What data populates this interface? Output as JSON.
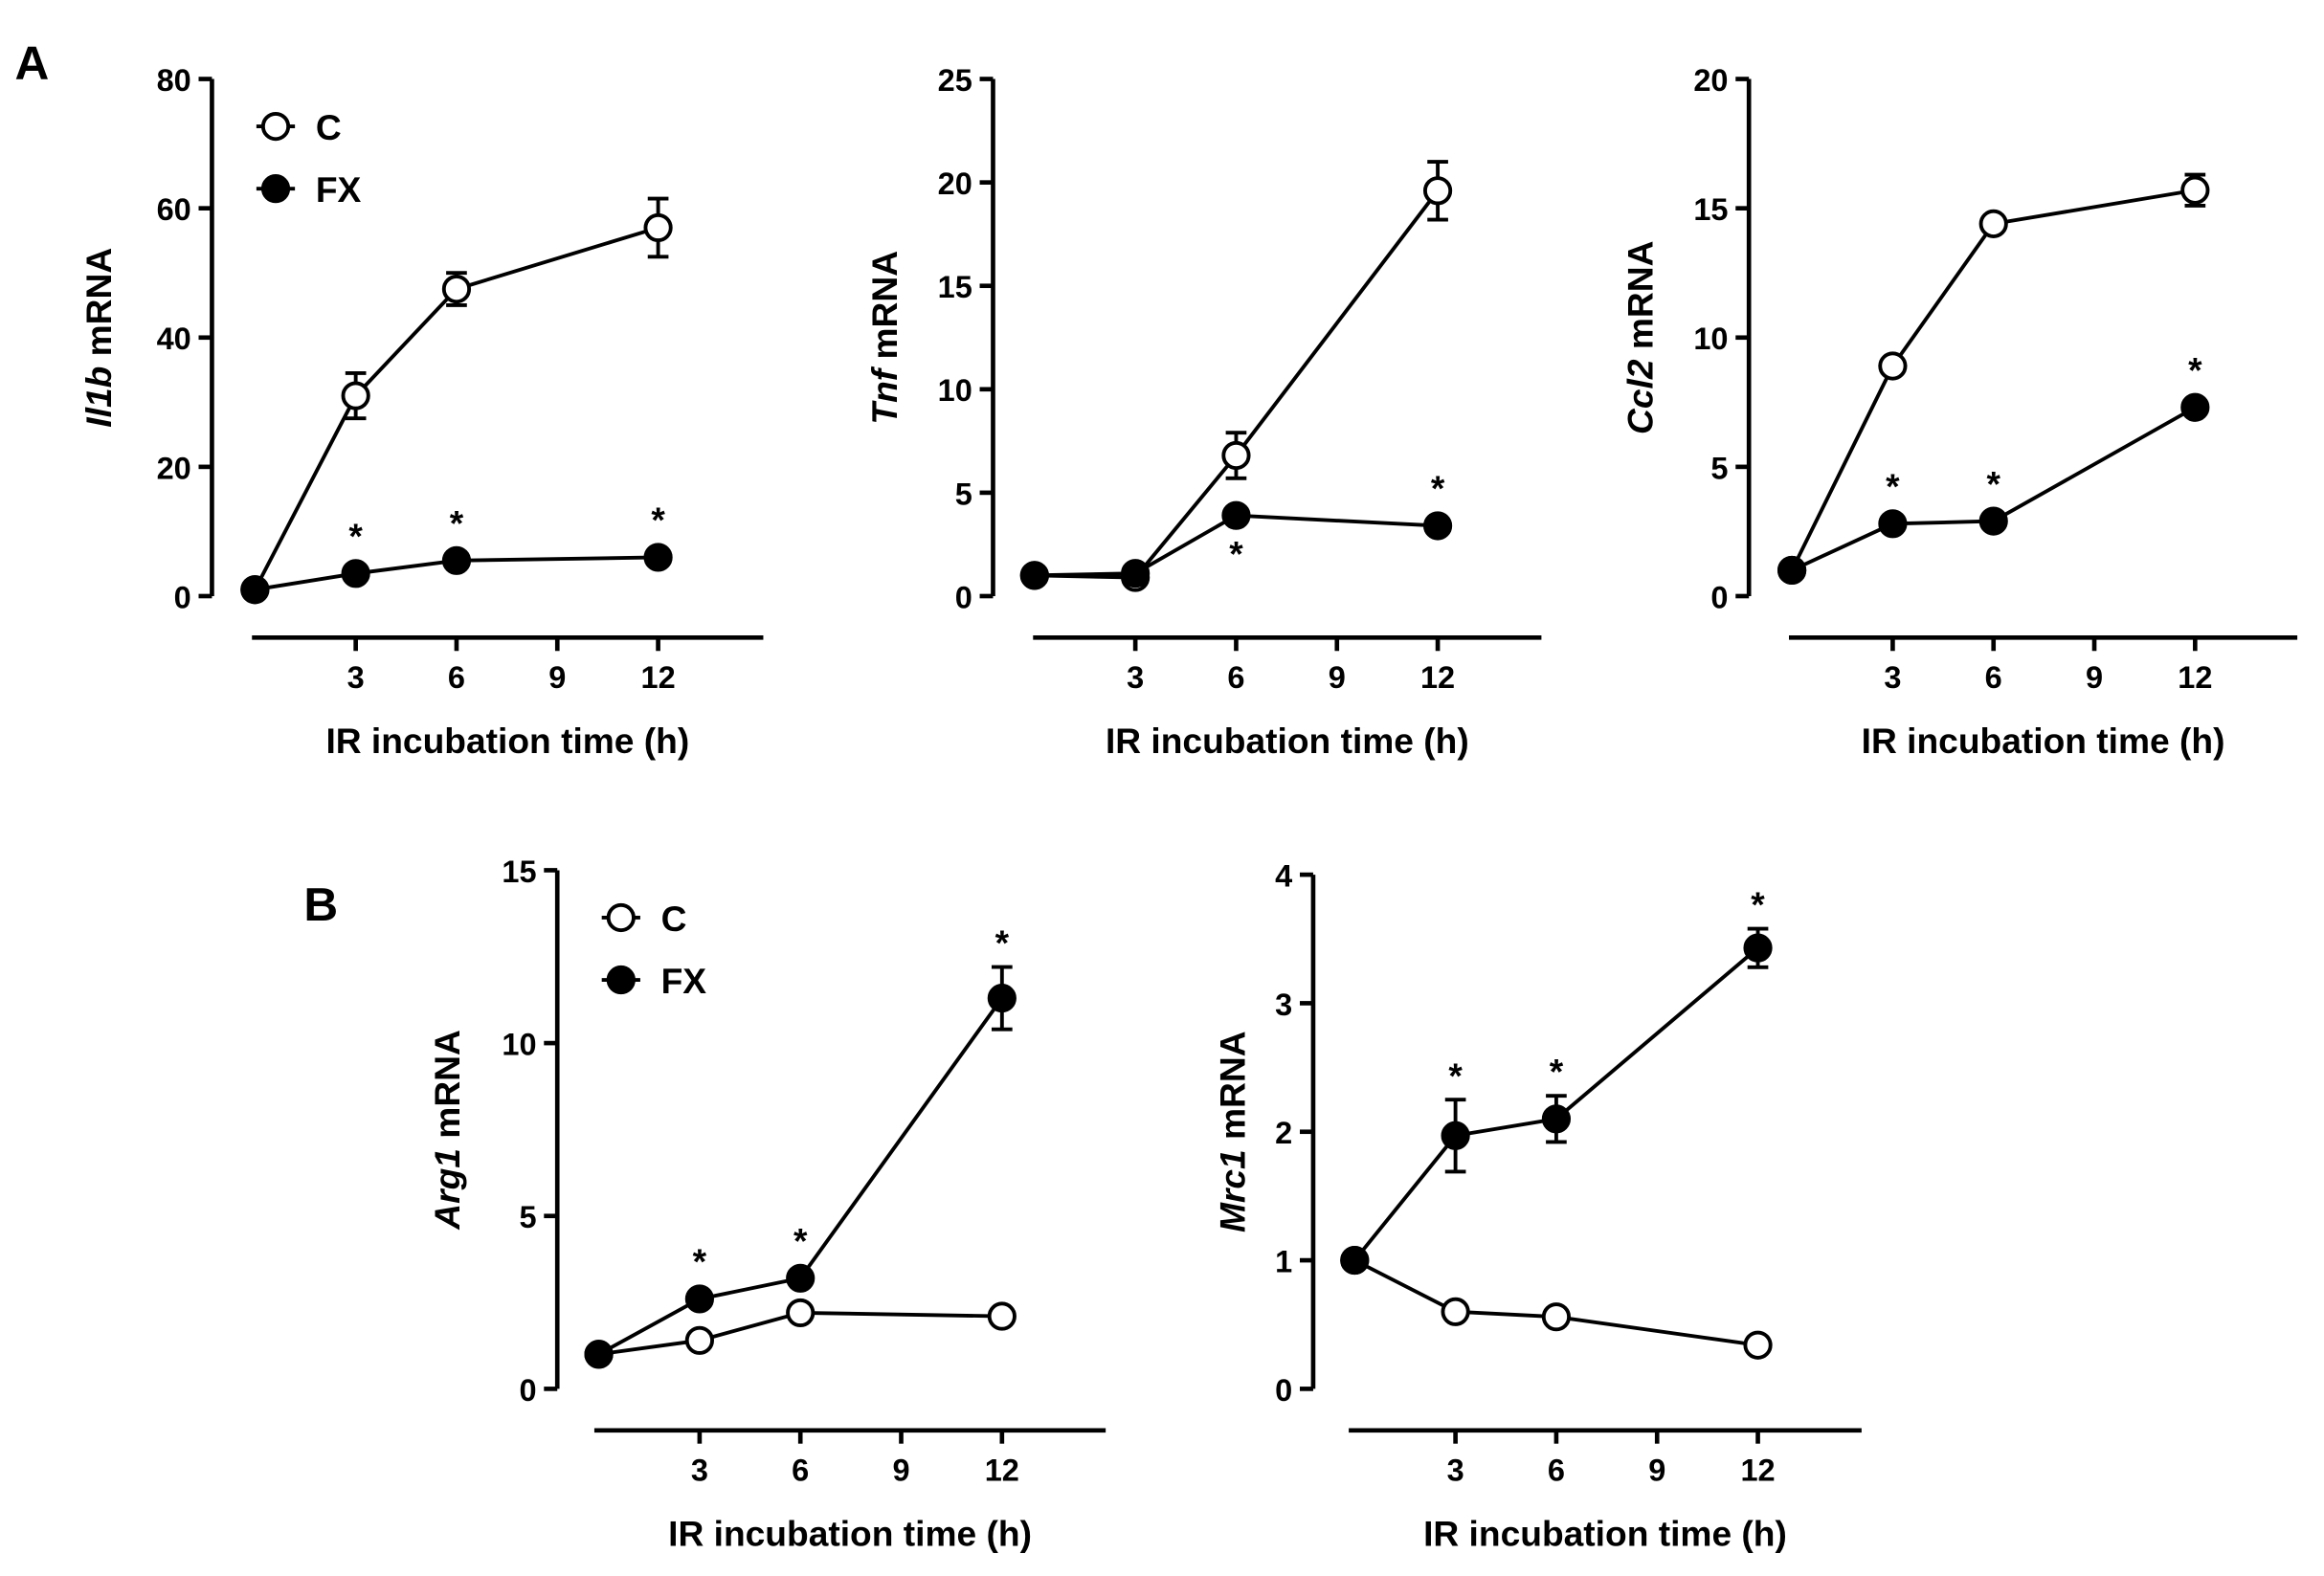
{
  "panels": [
    "A",
    "B"
  ],
  "legend": {
    "c": "C",
    "fx": "FX"
  },
  "colors": {
    "line": "#000000",
    "c_fill": "#ffffff",
    "fx_fill": "#000000"
  },
  "chart_data": [
    {
      "type": "line",
      "panel": "A",
      "gene": "Il1b",
      "ylabel_suffix": " mRNA",
      "xlabel": "IR incubation time (h)",
      "x": [
        0,
        3,
        6,
        12
      ],
      "xticks": [
        3,
        6,
        9,
        12
      ],
      "ylim": [
        0,
        80
      ],
      "yticks": [
        0,
        20,
        40,
        60,
        80
      ],
      "legend": "top-left",
      "series": [
        {
          "name": "C",
          "values": [
            1,
            31,
            47.5,
            57
          ],
          "errors": [
            0,
            3.5,
            2.5,
            4.5
          ]
        },
        {
          "name": "FX",
          "values": [
            1,
            3.5,
            5.5,
            6
          ],
          "errors": [
            0,
            0.5,
            0.5,
            0.5
          ],
          "significant": [
            false,
            true,
            true,
            true
          ],
          "star_position": [
            "above",
            "above",
            "above",
            "above"
          ]
        }
      ]
    },
    {
      "type": "line",
      "panel": "A",
      "gene": "Tnf",
      "ylabel_suffix": " mRNA",
      "xlabel": "IR incubation time (h)",
      "x": [
        0,
        3,
        6,
        12
      ],
      "xticks": [
        3,
        6,
        9,
        12
      ],
      "ylim": [
        0,
        25
      ],
      "yticks": [
        0,
        5,
        10,
        15,
        20,
        25
      ],
      "series": [
        {
          "name": "C",
          "values": [
            1,
            0.9,
            6.8,
            19.6
          ],
          "errors": [
            0,
            0.1,
            1.1,
            1.4
          ]
        },
        {
          "name": "FX",
          "values": [
            1,
            1.1,
            3.9,
            3.4
          ],
          "errors": [
            0,
            0.1,
            0.2,
            0.2
          ],
          "significant": [
            false,
            false,
            true,
            true
          ],
          "star_position": [
            "above",
            "above",
            "below",
            "above"
          ]
        }
      ]
    },
    {
      "type": "line",
      "panel": "A",
      "gene": "Ccl2",
      "ylabel_suffix": " mRNA",
      "xlabel": "IR incubation time (h)",
      "x": [
        0,
        3,
        6,
        12
      ],
      "xticks": [
        3,
        6,
        9,
        12
      ],
      "ylim": [
        0,
        20
      ],
      "yticks": [
        0,
        5,
        10,
        15,
        20
      ],
      "series": [
        {
          "name": "C",
          "values": [
            1,
            8.9,
            14.4,
            15.7
          ],
          "errors": [
            0,
            0.2,
            0.2,
            0.6
          ]
        },
        {
          "name": "FX",
          "values": [
            1,
            2.8,
            2.9,
            7.3
          ],
          "errors": [
            0,
            0.1,
            0.1,
            0.5
          ],
          "significant": [
            false,
            true,
            true,
            true
          ],
          "star_position": [
            "above",
            "above",
            "above",
            "above"
          ]
        }
      ]
    },
    {
      "type": "line",
      "panel": "B",
      "gene": "Arg1",
      "ylabel_suffix": " mRNA",
      "xlabel": "IR incubation time (h)",
      "x": [
        0,
        3,
        6,
        12
      ],
      "xticks": [
        3,
        6,
        9,
        12
      ],
      "ylim": [
        0,
        15
      ],
      "yticks": [
        0,
        5,
        10,
        15
      ],
      "legend": "top-left",
      "series": [
        {
          "name": "C",
          "values": [
            1,
            1.4,
            2.2,
            2.1
          ],
          "errors": [
            0,
            0.1,
            0.1,
            0.1
          ]
        },
        {
          "name": "FX",
          "values": [
            1,
            2.6,
            3.2,
            11.3
          ],
          "errors": [
            0,
            0.1,
            0.1,
            0.9
          ],
          "significant": [
            false,
            true,
            true,
            true
          ],
          "star_position": [
            "above",
            "above",
            "above",
            "above"
          ]
        }
      ]
    },
    {
      "type": "line",
      "panel": "B",
      "gene": "Mrc1",
      "ylabel_suffix": " mRNA",
      "xlabel": "IR incubation time (h)",
      "x": [
        0,
        3,
        6,
        12
      ],
      "xticks": [
        3,
        6,
        9,
        12
      ],
      "ylim": [
        0,
        4
      ],
      "yticks": [
        0,
        1,
        2,
        3,
        4
      ],
      "series": [
        {
          "name": "C",
          "values": [
            1,
            0.6,
            0.56,
            0.34
          ],
          "errors": [
            0,
            0.02,
            0.02,
            0.02
          ]
        },
        {
          "name": "FX",
          "values": [
            1,
            1.97,
            2.1,
            3.43
          ],
          "errors": [
            0,
            0.28,
            0.18,
            0.15
          ],
          "significant": [
            false,
            true,
            true,
            true
          ],
          "star_position": [
            "above",
            "above",
            "above",
            "above"
          ]
        }
      ]
    }
  ]
}
